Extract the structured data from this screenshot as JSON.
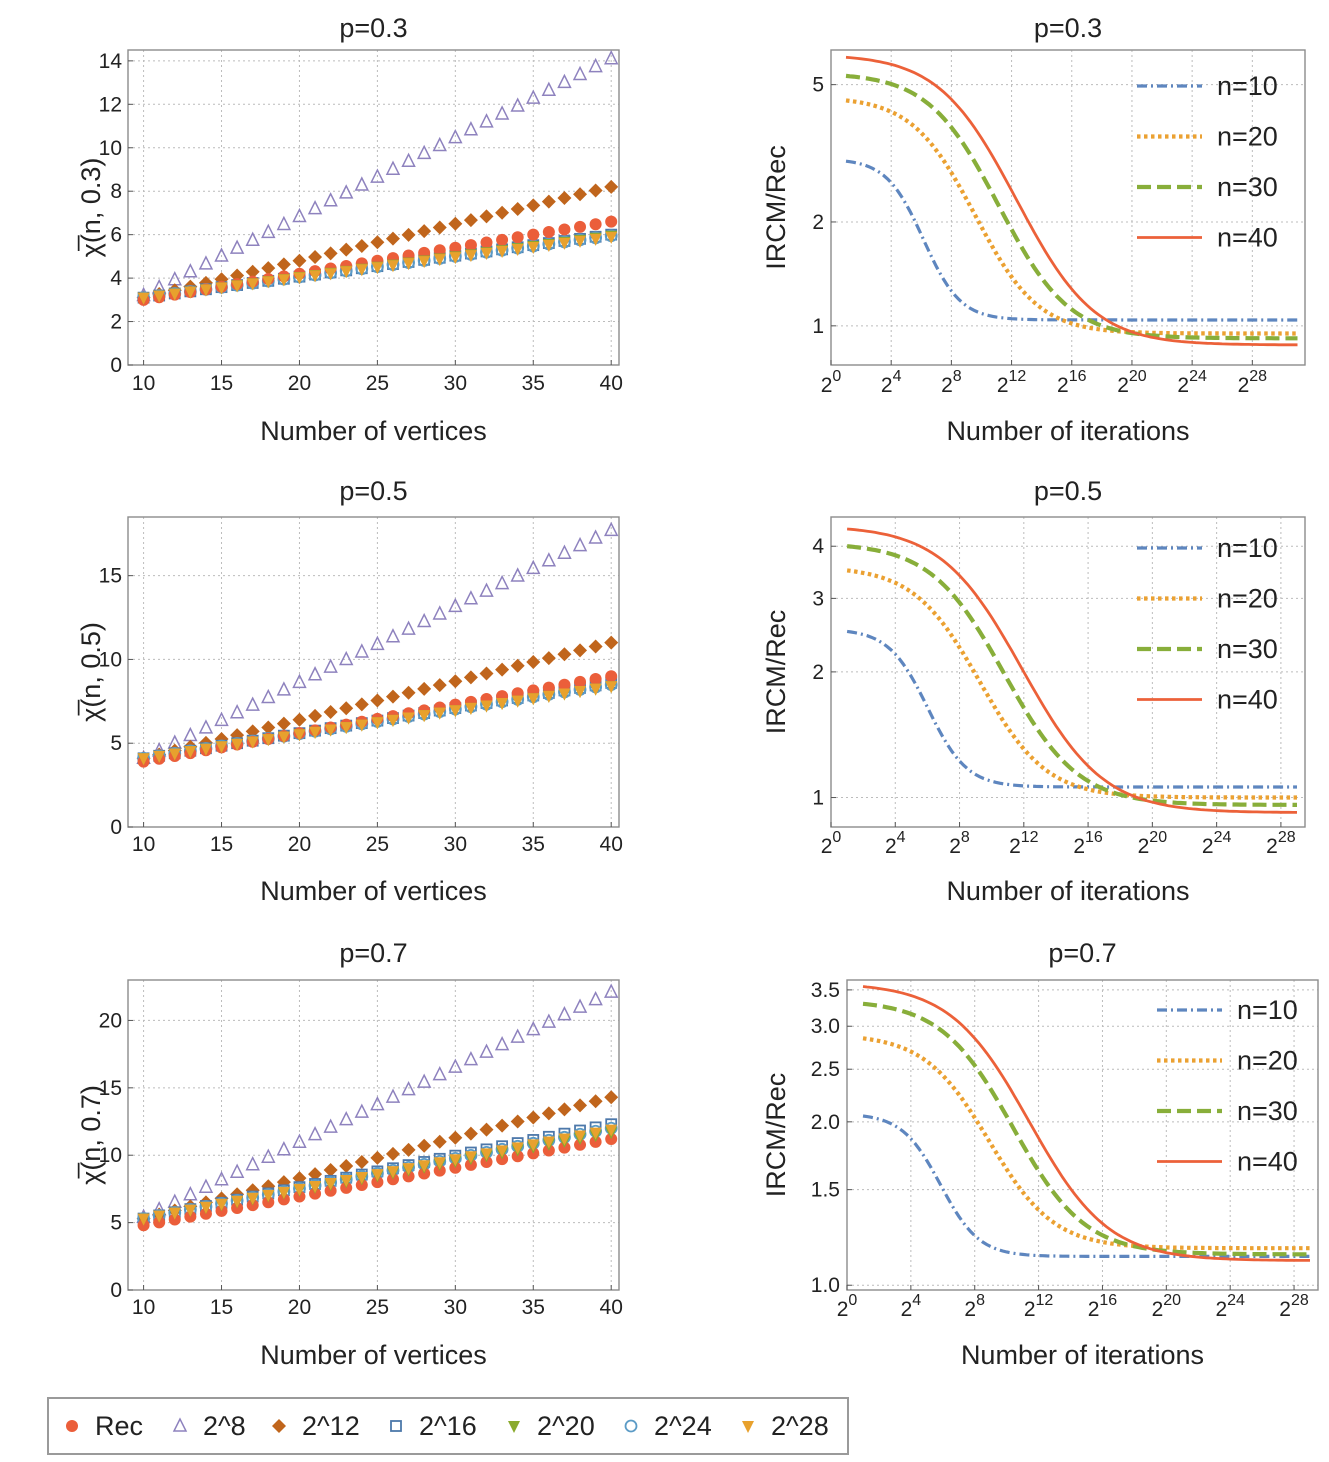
{
  "colors": {
    "rec": "#EB5E3A",
    "p8": "#8E82BE",
    "p12": "#C0651C",
    "p16": "#4D78AA",
    "p20": "#8AAA2E",
    "p24": "#5B9BC6",
    "p28": "#E8A12D",
    "n10": "#5E86BF",
    "n20": "#EBA132",
    "n30": "#88AE3A",
    "n40": "#EC6139"
  },
  "legend": {
    "items": [
      {
        "label": "Rec",
        "marker": "circle-filled",
        "color_key": "rec"
      },
      {
        "label": "2^8",
        "marker": "triangle-open",
        "color_key": "p8"
      },
      {
        "label": "2^12",
        "marker": "diamond-filled",
        "color_key": "p12"
      },
      {
        "label": "2^16",
        "marker": "square-open",
        "color_key": "p16"
      },
      {
        "label": "2^20",
        "marker": "triangle-down-filled",
        "color_key": "p20"
      },
      {
        "label": "2^24",
        "marker": "circle-open",
        "color_key": "p24"
      },
      {
        "label": "2^28",
        "marker": "triangle-down-filled",
        "color_key": "p28"
      }
    ]
  },
  "chart_data": [
    {
      "type": "scatter",
      "title": "p=0.3",
      "xlabel": "Number of vertices",
      "ylabel": "χ̅(n, 0.3)",
      "xlim": [
        9,
        40.5
      ],
      "ylim": [
        0,
        14.5
      ],
      "xticks": [
        10,
        15,
        20,
        25,
        30,
        35,
        40
      ],
      "yticks": [
        0,
        2,
        4,
        6,
        8,
        10,
        12,
        14
      ],
      "x_start": 10,
      "x_end": 40,
      "series": [
        {
          "name": "Rec",
          "start": 3.0,
          "end": 6.6,
          "curve": 1.0
        },
        {
          "name": "2^8",
          "start": 3.2,
          "end": 14.1,
          "curve": 1.0
        },
        {
          "name": "2^12",
          "start": 3.1,
          "end": 8.2,
          "curve": 1.0
        },
        {
          "name": "2^16",
          "start": 3.1,
          "end": 6.0,
          "curve": 1.0
        },
        {
          "name": "2^20",
          "start": 3.1,
          "end": 5.95,
          "curve": 1.0
        },
        {
          "name": "2^24",
          "start": 3.1,
          "end": 5.95,
          "curve": 1.0
        },
        {
          "name": "2^28",
          "start": 3.1,
          "end": 5.9,
          "curve": 1.0
        }
      ]
    },
    {
      "type": "line",
      "title": "p=0.3",
      "xlabel": "Number of iterations",
      "ylabel": "IRCM/Rec",
      "x_scale": "log2",
      "y_scale": "log",
      "xlim": [
        0,
        31.5
      ],
      "ylim": [
        0.77,
        6.3
      ],
      "xticks": [
        "2^0",
        "2^4",
        "2^8",
        "2^12",
        "2^16",
        "2^20",
        "2^24",
        "2^28"
      ],
      "yticks": [
        1,
        2,
        5
      ],
      "legend_position": "top-right",
      "series": [
        {
          "name": "n=10",
          "x_from": 1,
          "x_to": 31,
          "start": 3.0,
          "end": 1.04,
          "center": 5.5,
          "width": 1.2
        },
        {
          "name": "n=20",
          "x_from": 1,
          "x_to": 31,
          "start": 4.5,
          "end": 0.95,
          "center": 8.0,
          "width": 2.0
        },
        {
          "name": "n=30",
          "x_from": 1,
          "x_to": 31,
          "start": 5.3,
          "end": 0.92,
          "center": 9.2,
          "width": 2.2
        },
        {
          "name": "n=40",
          "x_from": 1,
          "x_to": 31,
          "start": 6.0,
          "end": 0.88,
          "center": 10.0,
          "width": 2.4
        }
      ]
    },
    {
      "type": "scatter",
      "title": "p=0.5",
      "xlabel": "Number of vertices",
      "ylabel": "χ̅(n, 0.5)",
      "xlim": [
        9,
        40.5
      ],
      "ylim": [
        0,
        18.5
      ],
      "xticks": [
        10,
        15,
        20,
        25,
        30,
        35,
        40
      ],
      "yticks": [
        0,
        5,
        10,
        15
      ],
      "x_start": 10,
      "x_end": 40,
      "series": [
        {
          "name": "Rec",
          "start": 3.9,
          "end": 9.0,
          "curve": 1.0
        },
        {
          "name": "2^8",
          "start": 4.1,
          "end": 17.7,
          "curve": 1.0
        },
        {
          "name": "2^12",
          "start": 4.1,
          "end": 11.0,
          "curve": 1.0
        },
        {
          "name": "2^16",
          "start": 4.1,
          "end": 8.6,
          "curve": 1.0
        },
        {
          "name": "2^20",
          "start": 4.1,
          "end": 8.4,
          "curve": 1.0
        },
        {
          "name": "2^24",
          "start": 4.1,
          "end": 8.5,
          "curve": 1.0
        },
        {
          "name": "2^28",
          "start": 4.1,
          "end": 8.4,
          "curve": 1.0
        }
      ]
    },
    {
      "type": "line",
      "title": "p=0.5",
      "xlabel": "Number of iterations",
      "ylabel": "IRCM/Rec",
      "x_scale": "log2",
      "y_scale": "log",
      "xlim": [
        0,
        29.5
      ],
      "ylim": [
        0.85,
        4.7
      ],
      "xticks": [
        "2^0",
        "2^4",
        "2^8",
        "2^12",
        "2^16",
        "2^20",
        "2^24",
        "2^28"
      ],
      "yticks": [
        1,
        2,
        3,
        4
      ],
      "legend_position": "top-right",
      "series": [
        {
          "name": "n=10",
          "x_from": 1,
          "x_to": 29,
          "start": 2.5,
          "end": 1.06,
          "center": 5.5,
          "width": 1.2
        },
        {
          "name": "n=20",
          "x_from": 1,
          "x_to": 29,
          "start": 3.5,
          "end": 1.0,
          "center": 8.0,
          "width": 2.0
        },
        {
          "name": "n=30",
          "x_from": 1,
          "x_to": 29,
          "start": 4.0,
          "end": 0.96,
          "center": 9.2,
          "width": 2.2
        },
        {
          "name": "n=40",
          "x_from": 1,
          "x_to": 29,
          "start": 4.4,
          "end": 0.92,
          "center": 10.0,
          "width": 2.4
        }
      ]
    },
    {
      "type": "scatter",
      "title": "p=0.7",
      "xlabel": "Number of vertices",
      "ylabel": "χ̅(n, 0.7)",
      "xlim": [
        9,
        40.5
      ],
      "ylim": [
        0,
        23
      ],
      "xticks": [
        10,
        15,
        20,
        25,
        30,
        35,
        40
      ],
      "yticks": [
        0,
        5,
        10,
        15,
        20
      ],
      "x_start": 10,
      "x_end": 40,
      "series": [
        {
          "name": "Rec",
          "start": 4.8,
          "end": 11.2,
          "curve": 1.0
        },
        {
          "name": "2^8",
          "start": 5.4,
          "end": 22.1,
          "curve": 1.0
        },
        {
          "name": "2^12",
          "start": 5.3,
          "end": 14.3,
          "curve": 1.0
        },
        {
          "name": "2^16",
          "start": 5.3,
          "end": 12.3,
          "curve": 1.0
        },
        {
          "name": "2^20",
          "start": 5.3,
          "end": 11.7,
          "curve": 1.0
        },
        {
          "name": "2^24",
          "start": 5.3,
          "end": 12.0,
          "curve": 1.0
        },
        {
          "name": "2^28",
          "start": 5.3,
          "end": 11.9,
          "curve": 1.0
        }
      ]
    },
    {
      "type": "line",
      "title": "p=0.7",
      "xlabel": "Number of iterations",
      "ylabel": "IRCM/Rec",
      "x_scale": "log2",
      "y_scale": "log",
      "xlim": [
        0,
        29.5
      ],
      "ylim": [
        0.98,
        3.65
      ],
      "xticks": [
        "2^0",
        "2^4",
        "2^8",
        "2^12",
        "2^16",
        "2^20",
        "2^24",
        "2^28"
      ],
      "yticks": [
        "1.0",
        "1.5",
        "2.0",
        "2.5",
        "3.0",
        "3.5"
      ],
      "legend_position": "top-right",
      "series": [
        {
          "name": "n=10",
          "x_from": 1,
          "x_to": 29,
          "start": 2.05,
          "end": 1.13,
          "center": 5.5,
          "width": 1.2
        },
        {
          "name": "n=20",
          "x_from": 1,
          "x_to": 29,
          "start": 2.85,
          "end": 1.17,
          "center": 8.0,
          "width": 2.0
        },
        {
          "name": "n=30",
          "x_from": 1,
          "x_to": 29,
          "start": 3.3,
          "end": 1.14,
          "center": 9.2,
          "width": 2.2
        },
        {
          "name": "n=40",
          "x_from": 1,
          "x_to": 29,
          "start": 3.55,
          "end": 1.11,
          "center": 10.0,
          "width": 2.4
        }
      ]
    }
  ]
}
